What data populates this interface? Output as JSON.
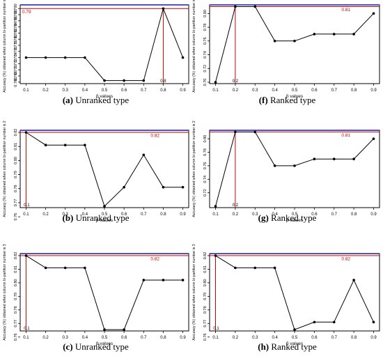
{
  "chart_data": [
    {
      "type": "line",
      "panel": "a",
      "caption": {
        "label": "(a)",
        "text": "Unranked type"
      },
      "xlabel": "β values",
      "ylabel": "Accuracy (%) obtained when column bi-partition number is 1",
      "x": [
        0.1,
        0.2,
        0.3,
        0.4,
        0.5,
        0.6,
        0.7,
        0.8,
        0.9
      ],
      "xticks": [
        "0.1",
        "0.2",
        "0.3",
        "0.4",
        "0.5",
        "0.6",
        "0.7",
        "0.8",
        "0.9"
      ],
      "y": [
        0.774,
        0.774,
        0.774,
        0.774,
        0.7665,
        0.7665,
        0.7665,
        0.79,
        0.774
      ],
      "yticks": [
        0.766,
        0.768,
        0.77,
        0.772,
        0.774,
        0.776,
        0.778,
        0.78,
        0.782,
        0.784,
        0.786,
        0.788,
        0.79
      ],
      "ytick_labels": [
        "0.766",
        "0.768",
        "0.770",
        "0.772",
        "0.774",
        "0.776",
        "0.778",
        "0.780",
        "0.782",
        "0.784",
        "0.786",
        "0.788",
        "0.790"
      ],
      "ylim": [
        0.7655,
        0.7912
      ],
      "best_value_label": "0.79",
      "best_value_label_position": "left",
      "best_beta_label": "0.8",
      "best_beta": 0.8,
      "best_y": 0.79,
      "grid": false,
      "reference_line_color": "#cc0000",
      "frame_top_color": "#1a1aaa"
    },
    {
      "type": "line",
      "panel": "f",
      "caption": {
        "label": "(f)",
        "text": "Ranked type"
      },
      "xlabel": "β values",
      "ylabel": "Accuracy (%) obtained when column bi-partition number is 1",
      "x": [
        0.1,
        0.2,
        0.3,
        0.4,
        0.5,
        0.6,
        0.7,
        0.8,
        0.9
      ],
      "xticks": [
        "0.1",
        "0.2",
        "0.3",
        "0.4",
        "0.5",
        "0.6",
        "0.7",
        "0.8",
        "0.9"
      ],
      "y": [
        0.7,
        0.81,
        0.81,
        0.76,
        0.76,
        0.77,
        0.77,
        0.77,
        0.8
      ],
      "yticks": [
        0.7,
        0.72,
        0.74,
        0.76,
        0.78,
        0.8
      ],
      "ytick_labels": [
        "0.70",
        "0.72",
        "0.74",
        "0.76",
        "0.78",
        "0.80"
      ],
      "ylim": [
        0.698,
        0.8125
      ],
      "best_value_label": "0.81",
      "best_value_label_position": "right",
      "best_beta_label": "0.2",
      "best_beta": 0.2,
      "best_y": 0.81,
      "grid": false,
      "reference_line_color": "#cc0000",
      "frame_top_color": "#1a1aaa"
    },
    {
      "type": "line",
      "panel": "b",
      "caption": {
        "label": "(b)",
        "text": "Unranked type"
      },
      "xlabel": "β values",
      "ylabel": "Accuracy (%) obtained when column bi-partition number is 2",
      "x": [
        0.1,
        0.2,
        0.3,
        0.4,
        0.5,
        0.6,
        0.7,
        0.8,
        0.9
      ],
      "xticks": [
        "0.1",
        "0.2",
        "0.3",
        "0.4",
        "0.5",
        "0.6",
        "0.7",
        "0.8",
        "0.9"
      ],
      "y": [
        0.82,
        0.811,
        0.811,
        0.811,
        0.7675,
        0.781,
        0.804,
        0.781,
        0.781
      ],
      "yticks": [
        0.76,
        0.77,
        0.78,
        0.79,
        0.8,
        0.81,
        0.82
      ],
      "ytick_labels": [
        "0.76",
        "0.77",
        "0.78",
        "0.79",
        "0.80",
        "0.81",
        "0.82"
      ],
      "ylim": [
        0.7665,
        0.8215
      ],
      "best_value_label": "0.82",
      "best_value_label_position": "right",
      "best_beta_label": "0.1",
      "best_beta": 0.1,
      "best_y": 0.82,
      "grid": false,
      "reference_line_color": "#cc0000",
      "frame_top_color": "#1a1aaa"
    },
    {
      "type": "line",
      "panel": "g",
      "caption": {
        "label": "(g)",
        "text": "Ranked type"
      },
      "xlabel": "β values",
      "ylabel": "Accuracy (%) obtained when column bi-partition number is 2",
      "x": [
        0.1,
        0.2,
        0.3,
        0.4,
        0.5,
        0.6,
        0.7,
        0.8,
        0.9
      ],
      "xticks": [
        "0.1",
        "0.2",
        "0.3",
        "0.4",
        "0.5",
        "0.6",
        "0.7",
        "0.8",
        "0.9"
      ],
      "y": [
        0.7,
        0.81,
        0.81,
        0.76,
        0.76,
        0.77,
        0.77,
        0.77,
        0.8
      ],
      "yticks": [
        0.72,
        0.74,
        0.76,
        0.78,
        0.8
      ],
      "ytick_labels": [
        "0.72",
        "0.74",
        "0.76",
        "0.78",
        "0.80"
      ],
      "ylim": [
        0.698,
        0.8125
      ],
      "best_value_label": "0.81",
      "best_value_label_position": "right",
      "best_beta_label": "0.2",
      "best_beta": 0.2,
      "best_y": 0.81,
      "grid": false,
      "reference_line_color": "#cc0000",
      "frame_top_color": "#1a1aaa"
    },
    {
      "type": "line",
      "panel": "c",
      "caption": {
        "label": "(c)",
        "text": "Unranked type"
      },
      "xlabel": "β values",
      "ylabel": "Accuracy (%) obtained when column bi-partition number is 3",
      "x": [
        0.1,
        0.2,
        0.3,
        0.4,
        0.5,
        0.6,
        0.7,
        0.8,
        0.9
      ],
      "xticks": [
        "0.1",
        "0.2",
        "0.3",
        "0.4",
        "0.5",
        "0.6",
        "0.7",
        "0.8",
        "0.9"
      ],
      "y": [
        0.82,
        0.811,
        0.811,
        0.811,
        0.7655,
        0.7655,
        0.802,
        0.802,
        0.802
      ],
      "yticks": [
        0.76,
        0.77,
        0.78,
        0.79,
        0.8,
        0.81,
        0.82
      ],
      "ytick_labels": [
        "0.76",
        "0.77",
        "0.78",
        "0.79",
        "0.80",
        "0.81",
        "0.82"
      ],
      "ylim": [
        0.7645,
        0.8215
      ],
      "best_value_label": "0.82",
      "best_value_label_position": "right",
      "best_beta_label": "0.1",
      "best_beta": 0.1,
      "best_y": 0.82,
      "grid": false,
      "reference_line_color": "#cc0000",
      "frame_top_color": "#1a1aaa"
    },
    {
      "type": "line",
      "panel": "h",
      "caption": {
        "label": "(h)",
        "text": "Ranked type"
      },
      "xlabel": "β values",
      "ylabel": "Accuracy (%) obtained when column bi-partition number is 3",
      "x": [
        0.1,
        0.2,
        0.3,
        0.4,
        0.5,
        0.6,
        0.7,
        0.8,
        0.9
      ],
      "xticks": [
        "0.1",
        "0.2",
        "0.3",
        "0.4",
        "0.5",
        "0.6",
        "0.7",
        "0.8",
        "0.9"
      ],
      "y": [
        0.82,
        0.811,
        0.811,
        0.811,
        0.7655,
        0.771,
        0.771,
        0.802,
        0.771
      ],
      "yticks": [
        0.76,
        0.77,
        0.78,
        0.79,
        0.8,
        0.81,
        0.82
      ],
      "ytick_labels": [
        "0.76",
        "0.77",
        "0.78",
        "0.79",
        "0.80",
        "0.81",
        "0.82"
      ],
      "ylim": [
        0.7645,
        0.8215
      ],
      "best_value_label": "0.82",
      "best_value_label_position": "right",
      "best_beta_label": "0.1",
      "best_beta": 0.1,
      "best_y": 0.82,
      "grid": false,
      "reference_line_color": "#cc0000",
      "frame_top_color": "#1a1aaa"
    }
  ]
}
